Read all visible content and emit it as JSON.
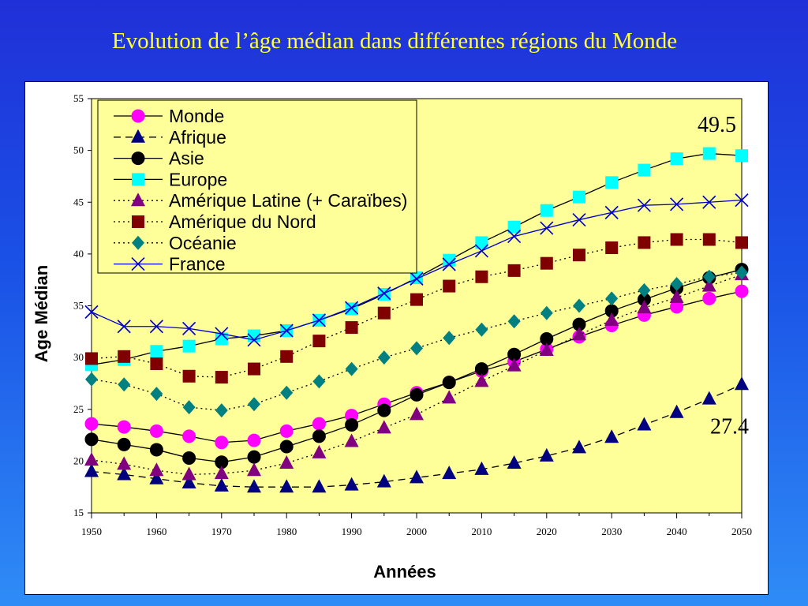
{
  "title": "Evolution de l’âge médian dans différentes régions du Monde",
  "chart_data": {
    "type": "line",
    "xlabel": "Années",
    "ylabel": "Age Médian",
    "xlim": [
      1950,
      2050
    ],
    "ylim": [
      15,
      55
    ],
    "x_ticks": [
      1950,
      1960,
      1970,
      1980,
      1990,
      2000,
      2010,
      2020,
      2030,
      2040,
      2050
    ],
    "y_ticks": [
      15,
      20,
      25,
      30,
      35,
      40,
      45,
      50,
      55
    ],
    "grid": false,
    "legend_position": "top-left",
    "plot_background": "#ffff99",
    "x": [
      1950,
      1955,
      1960,
      1965,
      1970,
      1975,
      1980,
      1985,
      1990,
      1995,
      2000,
      2005,
      2010,
      2015,
      2020,
      2025,
      2030,
      2035,
      2040,
      2045,
      2050
    ],
    "series": [
      {
        "name": "Monde",
        "color": "#ff00ff",
        "marker": "circle",
        "line": "solid",
        "values": [
          23.6,
          23.3,
          22.9,
          22.4,
          21.8,
          22.0,
          22.9,
          23.6,
          24.4,
          25.5,
          26.6,
          27.6,
          28.7,
          29.6,
          30.8,
          32.0,
          33.1,
          34.1,
          34.9,
          35.7,
          36.4
        ]
      },
      {
        "name": "Afrique",
        "color": "#000080",
        "marker": "triangle",
        "line": "dashed",
        "values": [
          19.0,
          18.7,
          18.3,
          17.9,
          17.6,
          17.5,
          17.5,
          17.5,
          17.7,
          18.0,
          18.4,
          18.8,
          19.2,
          19.8,
          20.5,
          21.3,
          22.3,
          23.5,
          24.7,
          26.0,
          27.4
        ]
      },
      {
        "name": "Asie",
        "color": "#000000",
        "marker": "circle",
        "line": "solid",
        "values": [
          22.1,
          21.6,
          21.1,
          20.3,
          19.9,
          20.4,
          21.4,
          22.4,
          23.5,
          24.9,
          26.4,
          27.6,
          28.9,
          30.3,
          31.8,
          33.2,
          34.5,
          35.6,
          36.7,
          37.7,
          38.5
        ]
      },
      {
        "name": "Europe",
        "color": "#00ffff",
        "marker": "square",
        "line": "solid",
        "values": [
          29.3,
          29.8,
          30.6,
          31.1,
          31.8,
          32.1,
          32.6,
          33.6,
          34.7,
          36.1,
          37.7,
          39.4,
          41.1,
          42.6,
          44.2,
          45.5,
          46.9,
          48.1,
          49.2,
          49.7,
          49.5
        ]
      },
      {
        "name": "Amérique Latine (+ Caraïbes)",
        "color": "#800080",
        "marker": "triangle",
        "line": "dotted",
        "values": [
          20.1,
          19.7,
          19.1,
          18.7,
          18.8,
          19.1,
          19.8,
          20.8,
          21.9,
          23.2,
          24.5,
          26.1,
          27.7,
          29.2,
          30.7,
          32.2,
          33.6,
          34.8,
          35.8,
          36.9,
          38.0
        ]
      },
      {
        "name": "Amérique du Nord",
        "color": "#800000",
        "marker": "square",
        "line": "dotted",
        "values": [
          29.9,
          30.1,
          29.4,
          28.2,
          28.1,
          28.9,
          30.1,
          31.6,
          32.9,
          34.3,
          35.6,
          36.9,
          37.8,
          38.4,
          39.1,
          39.9,
          40.6,
          41.1,
          41.4,
          41.4,
          41.1
        ]
      },
      {
        "name": "Océanie",
        "color": "#008080",
        "marker": "diamond",
        "line": "dotted",
        "values": [
          27.9,
          27.4,
          26.5,
          25.2,
          24.9,
          25.5,
          26.6,
          27.7,
          28.9,
          30.0,
          30.9,
          31.9,
          32.7,
          33.5,
          34.3,
          35.0,
          35.7,
          36.5,
          37.1,
          37.8,
          38.2
        ]
      },
      {
        "name": "France",
        "color": "#0000cc",
        "marker": "x",
        "line": "solid",
        "values": [
          34.4,
          33.0,
          33.0,
          32.8,
          32.3,
          31.7,
          32.6,
          33.6,
          34.8,
          36.2,
          37.6,
          39.0,
          40.3,
          41.7,
          42.5,
          43.3,
          44.0,
          44.7,
          44.8,
          45.0,
          45.2
        ]
      }
    ],
    "annotations": [
      {
        "text": "49.5",
        "x": 2050,
        "y": 49.5
      },
      {
        "text": "27.4",
        "x": 2050,
        "y": 27.4
      }
    ]
  }
}
